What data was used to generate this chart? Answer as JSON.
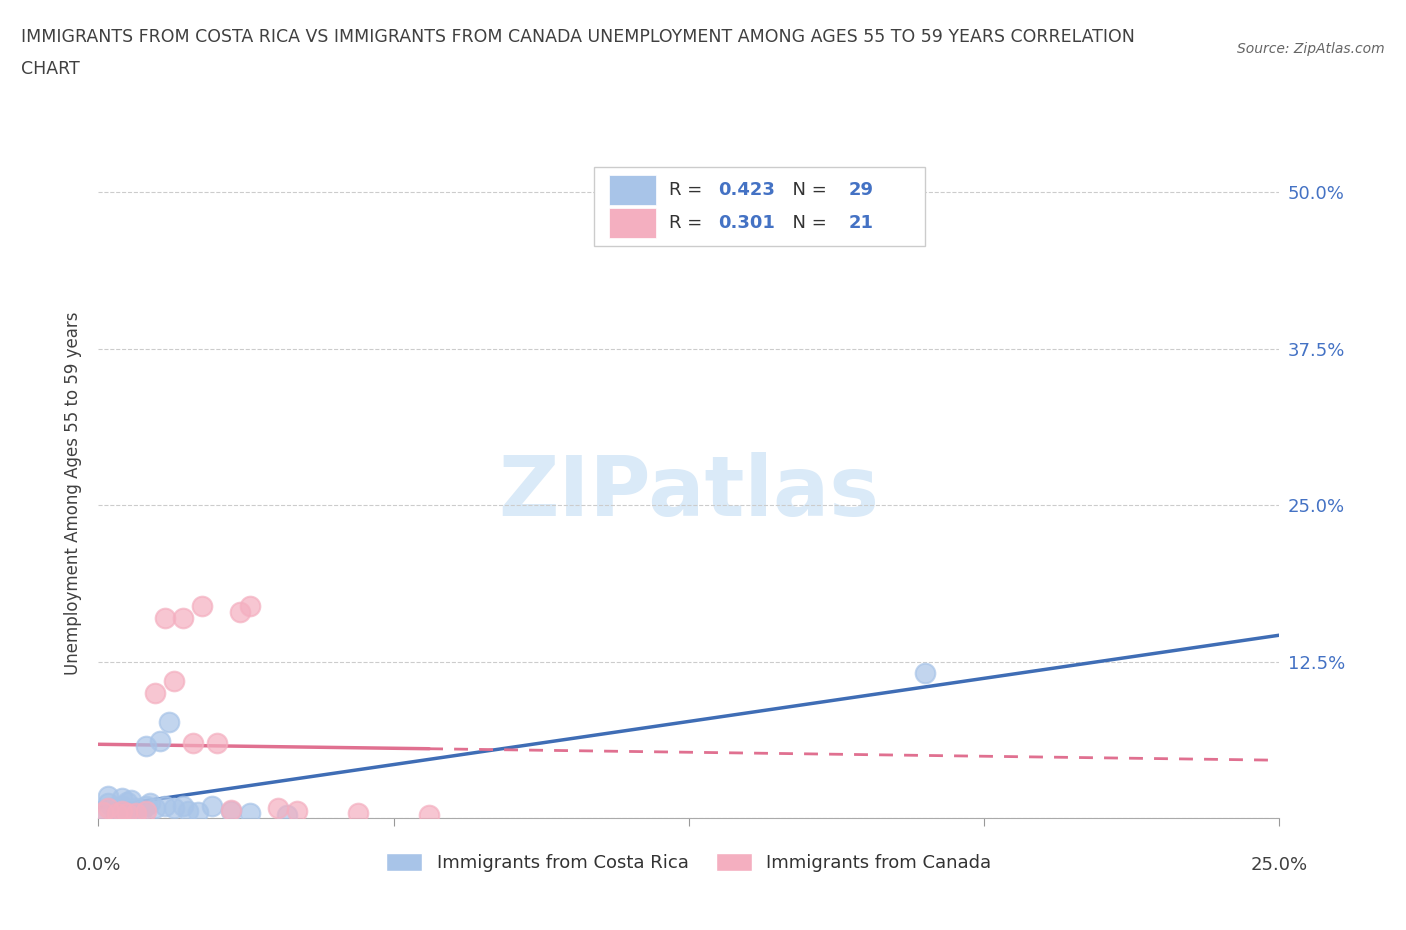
{
  "title_line1": "IMMIGRANTS FROM COSTA RICA VS IMMIGRANTS FROM CANADA UNEMPLOYMENT AMONG AGES 55 TO 59 YEARS CORRELATION",
  "title_line2": "CHART",
  "source_text": "Source: ZipAtlas.com",
  "ylabel": "Unemployment Among Ages 55 to 59 years",
  "xlim": [
    0.0,
    0.25
  ],
  "ylim": [
    0.0,
    0.52
  ],
  "yticks": [
    0.0,
    0.125,
    0.25,
    0.375,
    0.5
  ],
  "ytick_labels": [
    "",
    "12.5%",
    "25.0%",
    "37.5%",
    "50.0%"
  ],
  "watermark": "ZIPatlas",
  "legend1_label": "Immigrants from Costa Rica",
  "legend2_label": "Immigrants from Canada",
  "R_costa_rica": "0.423",
  "N_costa_rica": "29",
  "R_canada": "0.301",
  "N_canada": "21",
  "color_costa_rica": "#a8c4e8",
  "color_canada": "#f4afc0",
  "line_color_costa_rica": "#3f6db5",
  "line_color_canada": "#e07090",
  "background_color": "#ffffff",
  "watermark_color": "#daeaf8",
  "label_color": "#4472c4",
  "title_color": "#404040",
  "cr_x": [
    0.001,
    0.002,
    0.002,
    0.003,
    0.004,
    0.005,
    0.005,
    0.006,
    0.006,
    0.007,
    0.007,
    0.008,
    0.009,
    0.01,
    0.01,
    0.011,
    0.012,
    0.013,
    0.014,
    0.015,
    0.016,
    0.018,
    0.019,
    0.021,
    0.024,
    0.028,
    0.032,
    0.04,
    0.175
  ],
  "cr_y": [
    0.007,
    0.012,
    0.018,
    0.008,
    0.006,
    0.01,
    0.016,
    0.007,
    0.013,
    0.006,
    0.015,
    0.008,
    0.006,
    0.01,
    0.058,
    0.012,
    0.008,
    0.062,
    0.01,
    0.077,
    0.008,
    0.01,
    0.006,
    0.005,
    0.01,
    0.006,
    0.004,
    0.003,
    0.116
  ],
  "ca_x": [
    0.001,
    0.002,
    0.004,
    0.005,
    0.006,
    0.008,
    0.01,
    0.012,
    0.014,
    0.016,
    0.018,
    0.02,
    0.022,
    0.025,
    0.028,
    0.03,
    0.032,
    0.038,
    0.042,
    0.055,
    0.07
  ],
  "ca_y": [
    0.005,
    0.008,
    0.004,
    0.006,
    0.004,
    0.004,
    0.006,
    0.1,
    0.16,
    0.11,
    0.16,
    0.06,
    0.17,
    0.06,
    0.007,
    0.165,
    0.17,
    0.008,
    0.006,
    0.004,
    0.003
  ]
}
